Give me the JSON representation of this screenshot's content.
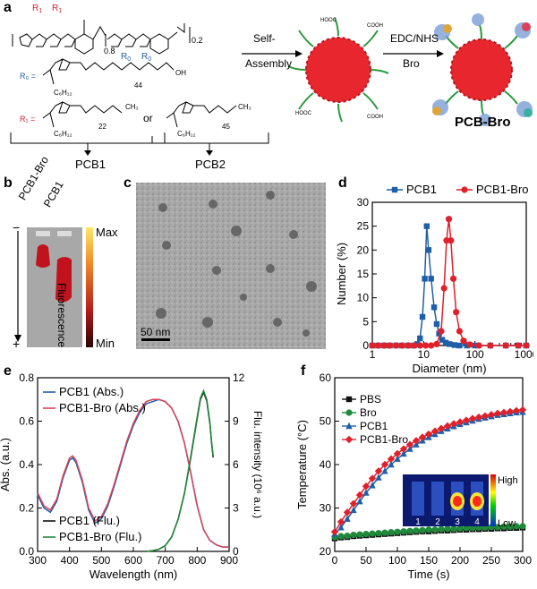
{
  "panel_a": {
    "label": "a",
    "poly_sub_left": "0.8",
    "poly_sub_right": "0.2",
    "poly_n": "n",
    "r1_label": "R",
    "r1_sub": "1",
    "r0_label": "R",
    "r0_sub": "0",
    "r0_def": "R₀ =",
    "r0_c6": "C₆H₁₂",
    "r0_44": "44",
    "r0_oh": "OH",
    "r1_def": "R₁ =",
    "r1_c6": "C₆H₁₂",
    "r1_22": "22",
    "r1_ch3": "CH₃",
    "or": "or",
    "r1b_c6": "C₆H₁₂",
    "r1b_45": "45",
    "r1b_ch3": "CH₃",
    "arrow1_line1": "Self-",
    "arrow1_line2": "Assembly",
    "arrow2_line1": "EDC/NHS",
    "arrow2_line2": "Bro",
    "cooh": "COOH",
    "hooc": "HOOC",
    "product": "PCB-Bro",
    "pcb1": "PCB1",
    "pcb2": "PCB2"
  },
  "panel_b": {
    "label": "b",
    "lane1": "PCB1-Bro",
    "lane2": "PCB1",
    "minus": "−",
    "plus": "+",
    "max": "Max",
    "min": "Min",
    "fluor": "Fluorescence"
  },
  "panel_c": {
    "label": "c",
    "scale": "50 nm"
  },
  "colors": {
    "blue": "#1f5fa8",
    "red": "#e0212b",
    "green": "#1f8a3a",
    "black": "#111111",
    "nanoparticle": "#e8262e"
  },
  "chart_data": [
    {
      "id": "d",
      "label": "d",
      "type": "line",
      "xlabel": "Diameter (nm)",
      "ylabel": "Number (%)",
      "xscale": "log",
      "xlim": [
        1,
        1000
      ],
      "ylim": [
        0,
        30
      ],
      "xticks": [
        "1",
        "10",
        "100",
        "1000"
      ],
      "yticks": [
        "0",
        "5",
        "10",
        "15",
        "20",
        "25",
        "30"
      ],
      "legend": "top",
      "series": [
        {
          "name": "PCB1",
          "color": "#1f5fa8",
          "marker": "square",
          "x": [
            1,
            1.3,
            1.7,
            2.2,
            2.9,
            3.8,
            5,
            6.5,
            7.5,
            8.5,
            9.5,
            10.5,
            11.5,
            12.5,
            14,
            16,
            18,
            20,
            23,
            27,
            32,
            40,
            50,
            70,
            100,
            200,
            400,
            700,
            1000
          ],
          "y": [
            0,
            0,
            0,
            0,
            0,
            0,
            0,
            0,
            0.3,
            1.5,
            6,
            14,
            25,
            20,
            14,
            8,
            4.5,
            2.5,
            1.2,
            0.6,
            0.3,
            0.1,
            0,
            0,
            0,
            0,
            0,
            0,
            0
          ]
        },
        {
          "name": "PCB1-Bro",
          "color": "#e0212b",
          "marker": "circle",
          "x": [
            1,
            1.3,
            1.7,
            2.2,
            2.9,
            3.8,
            5,
            6.5,
            8.5,
            11,
            14,
            18,
            22,
            25,
            28,
            31,
            34,
            38,
            43,
            50,
            60,
            80,
            120,
            200,
            400,
            700,
            1000
          ],
          "y": [
            0,
            0,
            0,
            0,
            0,
            0,
            0,
            0,
            0,
            0,
            0,
            0.3,
            3,
            12,
            22,
            26.5,
            22,
            14,
            7,
            3,
            1,
            0.2,
            0,
            0,
            0,
            0,
            0
          ]
        }
      ]
    },
    {
      "id": "e",
      "label": "e",
      "type": "line",
      "xlabel": "Wavelength (nm)",
      "ylabel": "Abs. (a.u.)",
      "y2label": "Flu. intensity (10⁶ a.u.)",
      "xlim": [
        300,
        900
      ],
      "ylim": [
        0,
        0.8
      ],
      "y2lim": [
        0,
        12
      ],
      "xticks": [
        "300",
        "400",
        "500",
        "600",
        "700",
        "800",
        "900"
      ],
      "yticks": [
        "0.0",
        "0.2",
        "0.4",
        "0.6",
        "0.8"
      ],
      "y2ticks": [
        "0",
        "3",
        "6",
        "9",
        "12"
      ],
      "series": [
        {
          "name": "PCB1 (Abs.)",
          "color": "#1f5fa8",
          "axis": "left",
          "x": [
            300,
            320,
            340,
            360,
            380,
            400,
            410,
            420,
            440,
            460,
            480,
            500,
            520,
            540,
            560,
            580,
            600,
            620,
            640,
            660,
            680,
            700,
            720,
            740,
            760,
            780,
            800,
            820,
            840,
            860,
            880,
            900
          ],
          "y": [
            0.26,
            0.2,
            0.18,
            0.23,
            0.34,
            0.42,
            0.43,
            0.41,
            0.32,
            0.19,
            0.13,
            0.15,
            0.21,
            0.3,
            0.4,
            0.5,
            0.58,
            0.64,
            0.68,
            0.69,
            0.7,
            0.69,
            0.66,
            0.6,
            0.5,
            0.36,
            0.21,
            0.1,
            0.05,
            0.03,
            0.02,
            0.02
          ]
        },
        {
          "name": "PCB1-Bro (Abs.)",
          "color": "#d9425a",
          "axis": "left",
          "x": [
            300,
            320,
            340,
            360,
            380,
            400,
            410,
            420,
            440,
            460,
            480,
            500,
            520,
            540,
            560,
            580,
            600,
            620,
            640,
            660,
            680,
            700,
            720,
            740,
            760,
            780,
            800,
            820,
            840,
            860,
            880,
            900
          ],
          "y": [
            0.27,
            0.21,
            0.19,
            0.24,
            0.35,
            0.43,
            0.44,
            0.42,
            0.33,
            0.2,
            0.14,
            0.16,
            0.22,
            0.31,
            0.41,
            0.51,
            0.59,
            0.65,
            0.69,
            0.7,
            0.7,
            0.69,
            0.66,
            0.6,
            0.5,
            0.36,
            0.21,
            0.1,
            0.05,
            0.03,
            0.02,
            0.02
          ]
        },
        {
          "name": "PCB1 (Flu.)",
          "color": "#111111",
          "axis": "right",
          "x": [
            640,
            660,
            680,
            700,
            720,
            740,
            760,
            780,
            800,
            810,
            820,
            830,
            840,
            845,
            850
          ],
          "y": [
            0,
            0.05,
            0.15,
            0.4,
            1,
            2.2,
            4,
            6.5,
            9.2,
            10.5,
            11,
            10.4,
            8.8,
            7.5,
            6.5
          ]
        },
        {
          "name": "PCB1-Bro (Flu.)",
          "color": "#1f8a3a",
          "axis": "right",
          "x": [
            640,
            660,
            680,
            700,
            720,
            740,
            760,
            780,
            800,
            810,
            820,
            830,
            840,
            845,
            850
          ],
          "y": [
            0,
            0.05,
            0.15,
            0.4,
            1,
            2.2,
            4,
            6.6,
            9.3,
            10.6,
            11.1,
            10.5,
            8.9,
            7.6,
            6.6
          ]
        }
      ]
    },
    {
      "id": "f",
      "label": "f",
      "type": "line",
      "xlabel": "Time (s)",
      "ylabel": "Temperature (°C)",
      "xlim": [
        0,
        300
      ],
      "ylim": [
        20,
        60
      ],
      "xticks": [
        "0",
        "50",
        "100",
        "150",
        "200",
        "250",
        "300"
      ],
      "yticks": [
        "20",
        "30",
        "40",
        "50",
        "60"
      ],
      "legend": "top-left",
      "series": [
        {
          "name": "PBS",
          "color": "#111111",
          "marker": "square",
          "x": [
            0,
            10,
            20,
            30,
            40,
            50,
            60,
            70,
            80,
            90,
            100,
            110,
            120,
            130,
            140,
            150,
            160,
            170,
            180,
            190,
            200,
            210,
            220,
            230,
            240,
            250,
            260,
            270,
            280,
            290,
            300
          ],
          "y": [
            23,
            23.2,
            23.3,
            23.5,
            23.6,
            23.7,
            23.8,
            23.9,
            24,
            24.1,
            24.2,
            24.3,
            24.4,
            24.5,
            24.6,
            24.6,
            24.7,
            24.8,
            24.8,
            24.9,
            25,
            25,
            25.1,
            25.1,
            25.2,
            25.2,
            25.3,
            25.3,
            25.4,
            25.4,
            25.5
          ]
        },
        {
          "name": "Bro",
          "color": "#1f8a3a",
          "marker": "circle",
          "x": [
            0,
            10,
            20,
            30,
            40,
            50,
            60,
            70,
            80,
            90,
            100,
            110,
            120,
            130,
            140,
            150,
            160,
            170,
            180,
            190,
            200,
            210,
            220,
            230,
            240,
            250,
            260,
            270,
            280,
            290,
            300
          ],
          "y": [
            23.3,
            23.5,
            23.6,
            23.8,
            23.9,
            24,
            24.1,
            24.2,
            24.3,
            24.4,
            24.5,
            24.6,
            24.7,
            24.8,
            24.9,
            25,
            25,
            25.1,
            25.2,
            25.2,
            25.3,
            25.4,
            25.4,
            25.5,
            25.5,
            25.6,
            25.6,
            25.7,
            25.7,
            25.8,
            25.8
          ]
        },
        {
          "name": "PCB1",
          "color": "#1f5fa8",
          "marker": "triangle",
          "x": [
            0,
            10,
            20,
            30,
            40,
            50,
            60,
            70,
            80,
            90,
            100,
            110,
            120,
            130,
            140,
            150,
            160,
            170,
            180,
            190,
            200,
            210,
            220,
            230,
            240,
            250,
            260,
            270,
            280,
            290,
            300
          ],
          "y": [
            24,
            25.5,
            27.5,
            29.5,
            31.5,
            33.5,
            35.2,
            37,
            38.5,
            40,
            41.3,
            42.5,
            43.6,
            44.6,
            45.5,
            46.3,
            47,
            47.7,
            48.3,
            48.8,
            49.3,
            49.7,
            50.1,
            50.5,
            50.8,
            51.1,
            51.4,
            51.6,
            51.8,
            52,
            52.1
          ]
        },
        {
          "name": "PCB1-Bro",
          "color": "#e0212b",
          "marker": "diamond",
          "x": [
            0,
            10,
            20,
            30,
            40,
            50,
            60,
            70,
            80,
            90,
            100,
            110,
            120,
            130,
            140,
            150,
            160,
            170,
            180,
            190,
            200,
            210,
            220,
            230,
            240,
            250,
            260,
            270,
            280,
            290,
            300
          ],
          "y": [
            24.5,
            26.8,
            29,
            31,
            33,
            35,
            36.8,
            38.5,
            40,
            41.3,
            42.5,
            43.6,
            44.6,
            45.5,
            46.3,
            47,
            47.7,
            48.3,
            48.9,
            49.4,
            49.8,
            50.2,
            50.6,
            50.9,
            51.2,
            51.5,
            51.8,
            52,
            52.2,
            52.4,
            52.6
          ]
        }
      ],
      "inset": {
        "labels": [
          "1",
          "2",
          "3",
          "4"
        ],
        "high": "High",
        "low": "Low"
      }
    }
  ]
}
